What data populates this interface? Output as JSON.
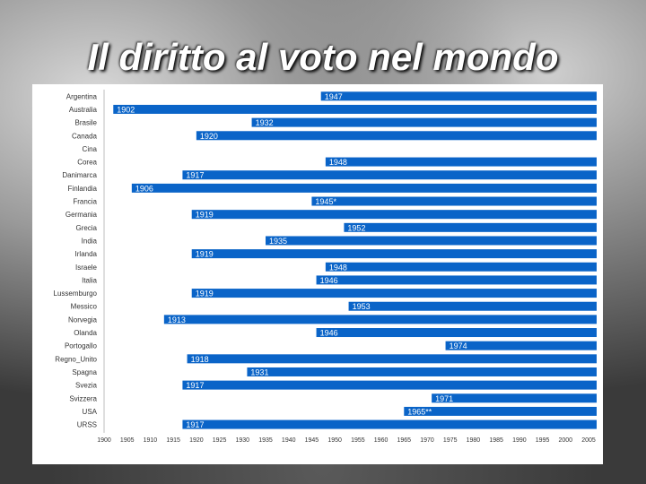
{
  "slide": {
    "title": "Il diritto al voto nel mondo"
  },
  "chart_data": {
    "type": "bar",
    "orientation": "horizontal",
    "bar_color": "#0a64c8",
    "xlim": [
      1900,
      2005
    ],
    "x_ticks": [
      1900,
      1905,
      1910,
      1915,
      1920,
      1925,
      1930,
      1935,
      1940,
      1945,
      1950,
      1955,
      1960,
      1965,
      1970,
      1975,
      1980,
      1985,
      1990,
      1995,
      2000,
      2005
    ],
    "categories": [
      "Argentina",
      "Australia",
      "Brasile",
      "Canada",
      "Cina",
      "Corea",
      "Danimarca",
      "Finlandia",
      "Francia",
      "Germania",
      "Grecia",
      "India",
      "Irlanda",
      "Israele",
      "Italia",
      "Lussemburgo",
      "Messico",
      "Norvegia",
      "Olanda",
      "Portogallo",
      "Regno_Unito",
      "Spagna",
      "Svezia",
      "Svizzera",
      "USA",
      "URSS"
    ],
    "values": [
      1947,
      1902,
      1932,
      1920,
      null,
      1948,
      1917,
      1906,
      1945,
      1919,
      1952,
      1935,
      1919,
      1948,
      1946,
      1919,
      1953,
      1913,
      1946,
      1974,
      1918,
      1931,
      1917,
      1971,
      1965,
      1917
    ],
    "labels": [
      "1947",
      "1902",
      "1932",
      "1920",
      "",
      "1948",
      "1917",
      "1906",
      "1945*",
      "1919",
      "1952",
      "1935",
      "1919",
      "1948",
      "1946",
      "1919",
      "1953",
      "1913",
      "1946",
      "1974",
      "1918",
      "1931",
      "1917",
      "1971",
      "1965**",
      "1917"
    ]
  }
}
